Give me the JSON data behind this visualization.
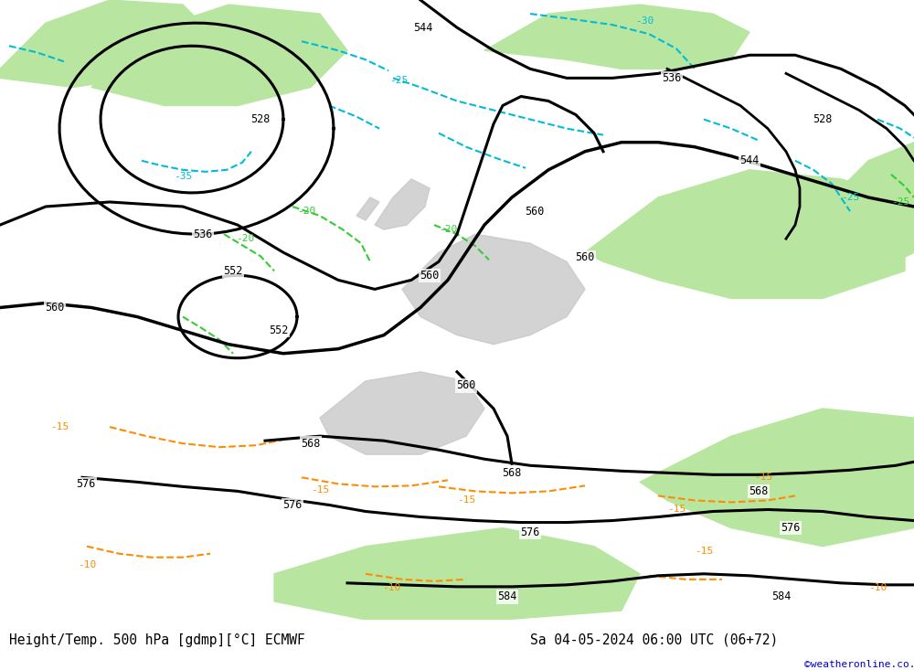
{
  "title_left": "Height/Temp. 500 hPa [gdmp][°C] ECMWF",
  "title_right": "Sa 04-05-2024 06:00 UTC (06+72)",
  "credit": "©weatheronline.co.uk",
  "land_green": "#b8e6a0",
  "land_gray": "#c8c8c8",
  "contour_cyan": "#00bcd4",
  "contour_green": "#32cd32",
  "contour_orange": "#ff8c00",
  "fig_bg": "#ffffff",
  "bottom_bar_bg": "#cccccc",
  "credit_color": "#0000cc"
}
